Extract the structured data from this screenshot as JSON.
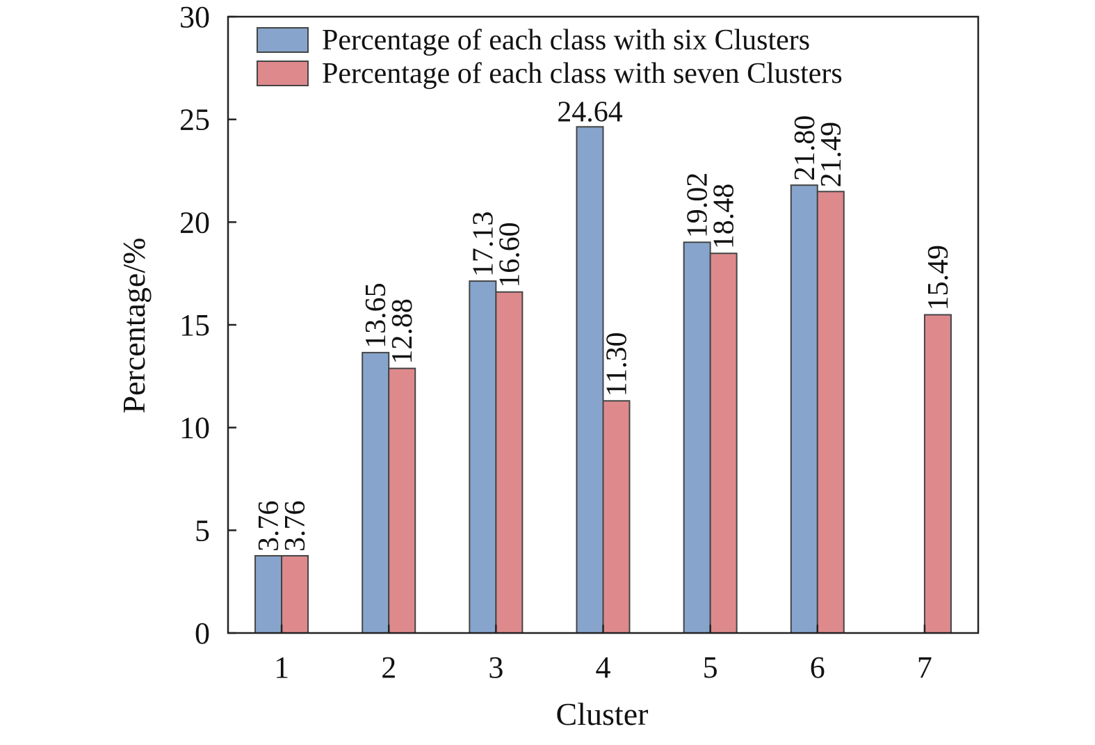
{
  "chart_data": {
    "type": "bar",
    "title": "",
    "xlabel": "Cluster",
    "ylabel": "Percentage/%",
    "categories": [
      "1",
      "2",
      "3",
      "4",
      "5",
      "6",
      "7"
    ],
    "ylim": [
      0,
      30
    ],
    "yticks": [
      "0",
      "5",
      "10",
      "15",
      "20",
      "25",
      "30"
    ],
    "grid": false,
    "legend_position": "top-center",
    "series": [
      {
        "name": "Percentage of each class with six Clusters",
        "color": "#87a5cc",
        "values": [
          3.76,
          13.65,
          17.13,
          24.64,
          19.02,
          21.8,
          null
        ],
        "labels": [
          "3.76",
          "13.65",
          "17.13",
          "24.64",
          "19.02",
          "21.80",
          ""
        ]
      },
      {
        "name": "Percentage of each class with seven Clusters",
        "color": "#de8a8d",
        "values": [
          3.76,
          12.88,
          16.6,
          11.3,
          18.48,
          21.49,
          15.49
        ],
        "labels": [
          "3.76",
          "12.88",
          "16.60",
          "11.30",
          "18.48",
          "21.49",
          "15.49"
        ]
      }
    ]
  }
}
